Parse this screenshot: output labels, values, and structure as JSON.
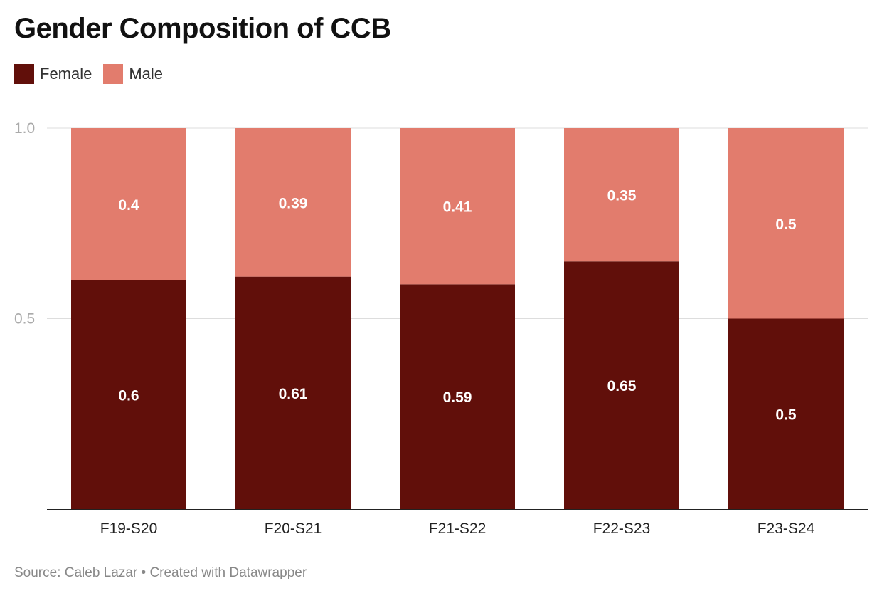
{
  "chart_data": {
    "type": "bar",
    "stacked": true,
    "title": "Gender Composition of CCB",
    "categories": [
      "F19-S20",
      "F20-S21",
      "F21-S22",
      "F22-S23",
      "F23-S24"
    ],
    "series": [
      {
        "name": "Female",
        "color": "#610f0a",
        "values": [
          0.6,
          0.61,
          0.59,
          0.65,
          0.5
        ]
      },
      {
        "name": "Male",
        "color": "#e27c6d",
        "values": [
          0.4,
          0.39,
          0.41,
          0.35,
          0.5
        ]
      }
    ],
    "value_labels": [
      [
        "0.6",
        "0.61",
        "0.59",
        "0.65",
        "0.5"
      ],
      [
        "0.4",
        "0.39",
        "0.41",
        "0.35",
        "0.5"
      ]
    ],
    "yticks": [
      0.5,
      1.0
    ],
    "ytick_labels": [
      "0.5",
      "1.0"
    ],
    "ylim": [
      0,
      1
    ],
    "xlabel": "",
    "ylabel": "",
    "legend_position": "top-left",
    "grid": true
  },
  "footer": {
    "source": "Source: Caleb Lazar",
    "separator": " • ",
    "credit": "Created with Datawrapper"
  }
}
